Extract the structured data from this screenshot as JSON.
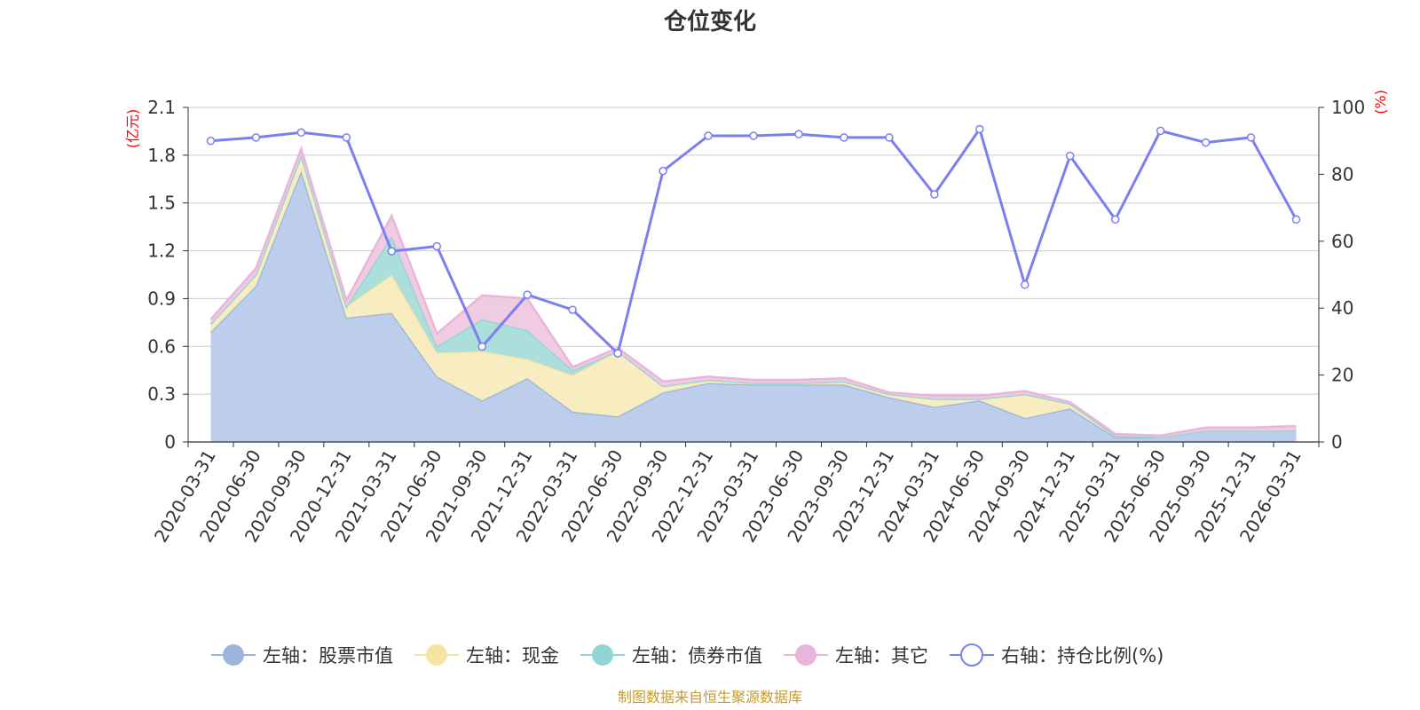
{
  "chart_data": {
    "type": "area",
    "title": "仓位变化",
    "source": "制图数据来自恒生聚源数据库",
    "left_axis": {
      "unit": "(亿元)",
      "min": 0,
      "max": 2.1,
      "ticks": [
        "0",
        "0.3",
        "0.6",
        "0.9",
        "1.2",
        "1.5",
        "1.8",
        "2.1"
      ]
    },
    "right_axis": {
      "unit": "(%)",
      "min": 0,
      "max": 100,
      "ticks": [
        "0",
        "20",
        "40",
        "60",
        "80",
        "100"
      ]
    },
    "categories": [
      "2020-03-31",
      "2020-06-30",
      "2020-09-30",
      "2020-12-31",
      "2021-03-31",
      "2021-06-30",
      "2021-09-30",
      "2021-12-31",
      "2022-03-31",
      "2022-06-30",
      "2022-09-30",
      "2022-12-31",
      "2023-03-31",
      "2023-06-30",
      "2023-09-30",
      "2023-12-31",
      "2024-03-31",
      "2024-06-30",
      "2024-09-30",
      "2024-12-31",
      "2025-03-31",
      "2025-06-30",
      "2025-09-30",
      "2025-12-31",
      "2026-03-31"
    ],
    "stacked_series": [
      {
        "name": "左轴：股票市值",
        "color": "#9bb5df",
        "fill": "#b8cbea",
        "values": [
          0.69,
          0.98,
          1.7,
          0.78,
          0.81,
          0.41,
          0.26,
          0.4,
          0.19,
          0.16,
          0.31,
          0.37,
          0.36,
          0.36,
          0.36,
          0.28,
          0.22,
          0.26,
          0.15,
          0.21,
          0.03,
          0.03,
          0.07,
          0.07,
          0.07
        ]
      },
      {
        "name": "左轴：现金",
        "color": "#f6e4a3",
        "fill": "#f8ecbd",
        "values": [
          0.05,
          0.07,
          0.1,
          0.07,
          0.24,
          0.15,
          0.31,
          0.12,
          0.23,
          0.41,
          0.04,
          0.02,
          0.01,
          0.01,
          0.02,
          0.02,
          0.05,
          0.01,
          0.15,
          0.03,
          0.01,
          0.0,
          0.0,
          0.0,
          0.0
        ]
      },
      {
        "name": "左轴：债券市值",
        "color": "#92d5d5",
        "fill": "#a8dcd9",
        "values": [
          0,
          0,
          0,
          0,
          0.24,
          0.04,
          0.2,
          0.18,
          0.03,
          0,
          0,
          0,
          0,
          0,
          0,
          0,
          0,
          0,
          0,
          0,
          0,
          0,
          0,
          0,
          0
        ]
      },
      {
        "name": "左轴：其它",
        "color": "#e9b6d9",
        "fill": "#efc9e1",
        "values": [
          0.03,
          0.04,
          0.04,
          0.04,
          0.13,
          0.08,
          0.15,
          0.2,
          0.02,
          0.02,
          0.03,
          0.02,
          0.02,
          0.02,
          0.02,
          0.01,
          0.02,
          0.02,
          0.02,
          0.01,
          0.01,
          0.01,
          0.02,
          0.02,
          0.03
        ]
      }
    ],
    "line_series": {
      "name": "右轴：持仓比例(%)",
      "color": "#7b7ff0",
      "axis": "right",
      "values": [
        90,
        91,
        92.5,
        91,
        57,
        58.5,
        28.5,
        44,
        39.5,
        26.5,
        81,
        91.5,
        91.5,
        92,
        91,
        91,
        74,
        93.5,
        47,
        85.5,
        66.5,
        93,
        89.5,
        91,
        66.5
      ]
    }
  }
}
